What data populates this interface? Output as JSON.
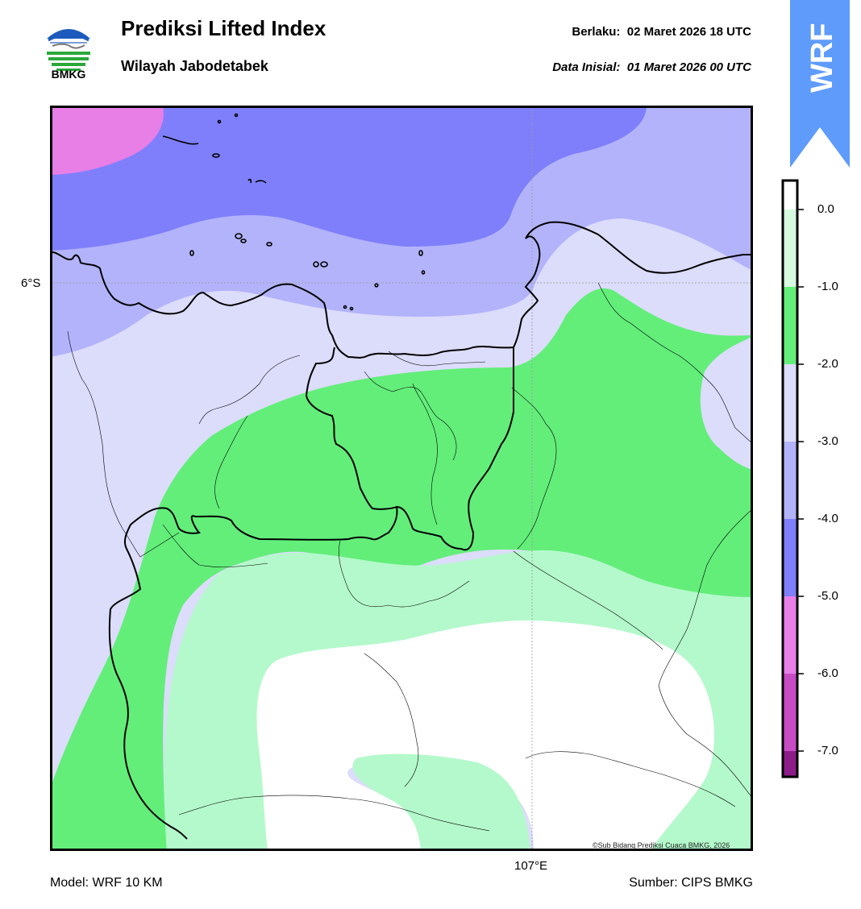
{
  "header": {
    "logo_text": "BMKG",
    "title": "Prediksi Lifted Index",
    "subtitle": "Wilayah Jabodetabek",
    "valid_label": "Berlaku:",
    "valid_value": "02 Maret 2026 18 UTC",
    "init_label": "Data Inisial:",
    "init_value": "01 Maret 2026 00 UTC",
    "model_tag": "WRF"
  },
  "map": {
    "lat_label": "6°S",
    "lon_label": "107°E",
    "copyright": "©Sub Bidang Prediksi Cuaca BMKG, 2026"
  },
  "colorbar": {
    "labels": [
      "0.0",
      "-1.0",
      "-2.0",
      "-3.0",
      "-4.0",
      "-5.0",
      "-6.0",
      "-7.0"
    ],
    "colors": [
      "#d6fbe0",
      "#63ee7a",
      "#dcdcfb",
      "#b3b3fb",
      "#7f7ffb",
      "#e77fe7",
      "#c74cc4",
      "#8c1d88"
    ]
  },
  "footer": {
    "model": "Model: WRF 10 KM",
    "source": "Sumber: CIPS BMKG"
  }
}
